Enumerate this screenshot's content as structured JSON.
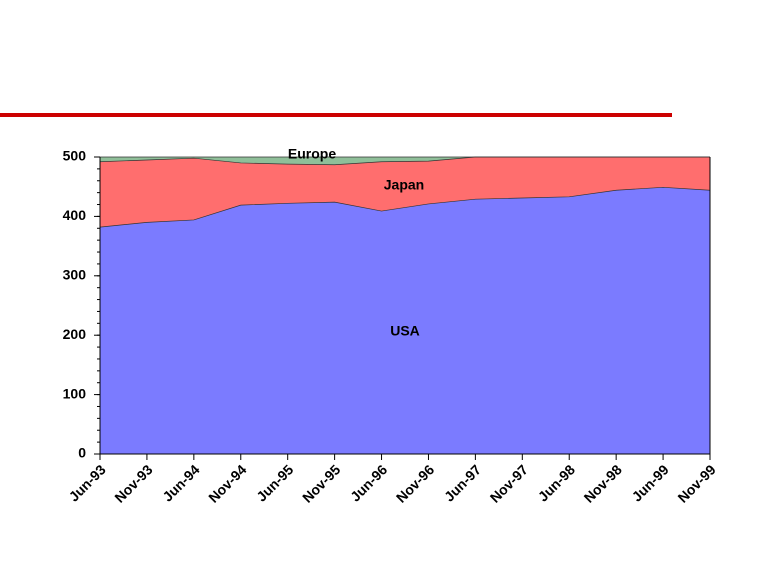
{
  "chart_data": {
    "type": "area",
    "categories": [
      "Jun-93",
      "Nov-93",
      "Jun-94",
      "Nov-94",
      "Jun-95",
      "Nov-95",
      "Jun-96",
      "Nov-96",
      "Jun-97",
      "Nov-97",
      "Jun-98",
      "Nov-98",
      "Jun-99",
      "Nov-99"
    ],
    "stacked": true,
    "series": [
      {
        "name": "USA",
        "color": "#7b7bff",
        "values": [
          382,
          390,
          394,
          419,
          422,
          424,
          409,
          421,
          429,
          431,
          433,
          444,
          449,
          444
        ]
      },
      {
        "name": "Japan",
        "color": "#ff6e6e",
        "values": [
          110,
          105,
          104,
          71,
          66,
          63,
          83,
          72,
          71,
          69,
          67,
          56,
          51,
          56
        ]
      },
      {
        "name": "Europe",
        "color": "#8fbf99",
        "values": [
          8,
          5,
          2,
          10,
          12,
          13,
          8,
          7,
          0,
          0,
          0,
          0,
          0,
          0
        ]
      }
    ],
    "ylim": [
      0,
      500
    ],
    "yticks": [
      0,
      100,
      200,
      300,
      400,
      500
    ],
    "grid": false
  }
}
